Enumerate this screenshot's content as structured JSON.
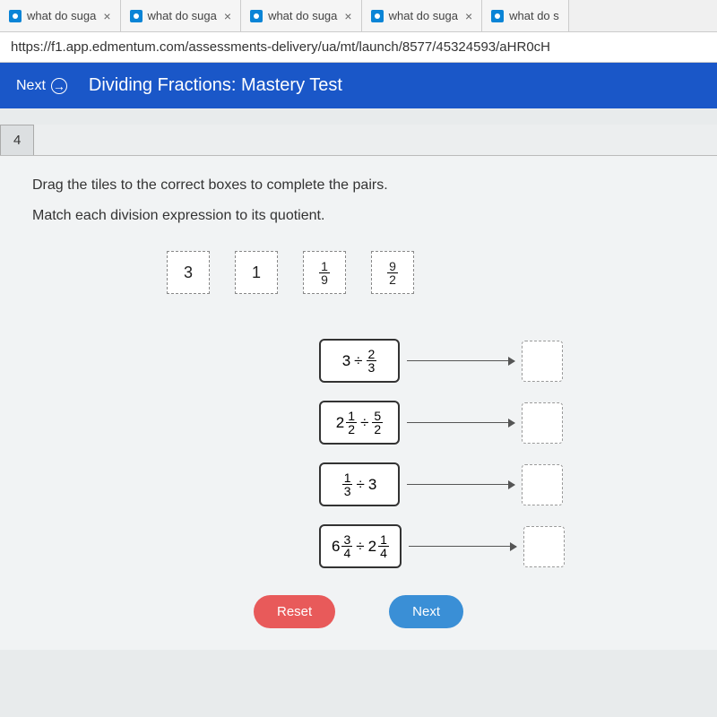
{
  "tabs": [
    {
      "label": "what do suga"
    },
    {
      "label": "what do suga"
    },
    {
      "label": "what do suga"
    },
    {
      "label": "what do suga"
    },
    {
      "label": "what do s"
    }
  ],
  "url": "https://f1.app.edmentum.com/assessments-delivery/ua/mt/launch/8577/45324593/aHR0cH",
  "nav": {
    "next": "Next",
    "title": "Dividing Fractions: Mastery Test"
  },
  "question": {
    "number": "4",
    "line1": "Drag the tiles to the correct boxes to complete the pairs.",
    "line2": "Match each division expression to its quotient."
  },
  "tiles": {
    "t1": "3",
    "t2": "1",
    "t3": {
      "n": "1",
      "d": "9"
    },
    "t4": {
      "n": "9",
      "d": "2"
    }
  },
  "exprs": {
    "e1": {
      "left_whole": "3",
      "op": "÷",
      "right": {
        "n": "2",
        "d": "3"
      }
    },
    "e2": {
      "left_mixed": {
        "w": "2",
        "n": "1",
        "d": "2"
      },
      "op": "÷",
      "right": {
        "n": "5",
        "d": "2"
      }
    },
    "e3": {
      "left": {
        "n": "1",
        "d": "3"
      },
      "op": "÷",
      "right_whole": "3"
    },
    "e4": {
      "left_mixed": {
        "w": "6",
        "n": "3",
        "d": "4"
      },
      "op": "÷",
      "right_mixed": {
        "w": "2",
        "n": "1",
        "d": "4"
      }
    }
  },
  "buttons": {
    "reset": "Reset",
    "next": "Next"
  }
}
